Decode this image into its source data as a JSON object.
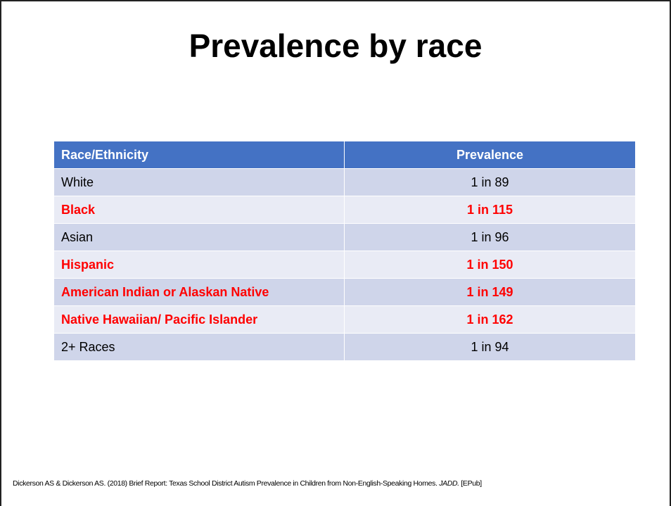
{
  "title": "Prevalence by race",
  "table": {
    "header": [
      "Race/Ethnicity",
      "Prevalence"
    ],
    "rows": [
      {
        "cells": [
          "White",
          "1 in 89"
        ],
        "highlighted": false
      },
      {
        "cells": [
          "Black",
          "1 in 115"
        ],
        "highlighted": true
      },
      {
        "cells": [
          "Asian",
          "1 in 96"
        ],
        "highlighted": false
      },
      {
        "cells": [
          "Hispanic",
          "1 in 150"
        ],
        "highlighted": true
      },
      {
        "cells": [
          "American Indian or Alaskan Native",
          "1 in 149"
        ],
        "highlighted": true
      },
      {
        "cells": [
          "Native Hawaiian/ Pacific Islander",
          "1 in 162"
        ],
        "highlighted": true
      },
      {
        "cells": [
          "2+ Races",
          "1 in 94"
        ],
        "highlighted": false
      }
    ]
  },
  "citation": {
    "text": "Dickerson AS & Dickerson AS. (2018) Brief Report: Texas School District Autism Prevalence in Children from Non-English-Speaking Homes.",
    "journal": "JADD.",
    "note": "[EPub]"
  }
}
